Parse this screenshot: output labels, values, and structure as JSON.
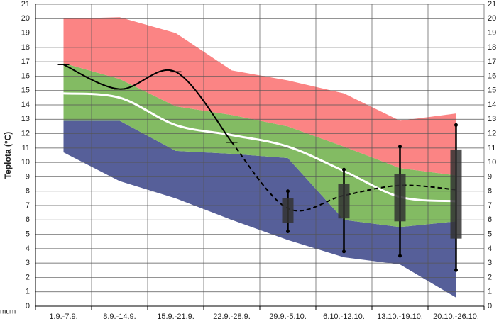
{
  "chart_data": {
    "type": "band_line_box",
    "y_label": "Teplota (°C)",
    "corner_text": "mum",
    "categories": [
      "1.9.-7.9.",
      "8.9.-14.9.",
      "15.9.-21.9.",
      "22.9.-28.9.",
      "29.9.-5.10.",
      "6.10.-12.10.",
      "13.10.-19.10.",
      "20.10.-26.10."
    ],
    "levels": [
      [
        10.7,
        8.7,
        7.5,
        6.0,
        4.6,
        3.4,
        2.9,
        0.6
      ],
      [
        12.9,
        12.9,
        10.8,
        10.6,
        10.3,
        6.0,
        5.5,
        5.9
      ],
      [
        16.9,
        15.8,
        13.9,
        13.3,
        12.5,
        11.1,
        9.6,
        9.1
      ],
      [
        20.0,
        20.1,
        19.0,
        16.4,
        15.7,
        14.8,
        12.9,
        13.4
      ]
    ],
    "band_colors": [
      "#565f99",
      "#83bb63",
      "#fb8484"
    ],
    "series": [
      {
        "color": "#ffffff",
        "style": "solid",
        "values": [
          14.8,
          14.5,
          12.6,
          11.9,
          11.1,
          9.4,
          7.6,
          7.3
        ]
      },
      {
        "color": "#000000",
        "style": "solid",
        "values": [
          16.8,
          15.1,
          16.3,
          11.4,
          null,
          null,
          null,
          null
        ]
      },
      {
        "color": "#000000",
        "style": "dashed",
        "values": [
          null,
          null,
          null,
          11.4,
          6.8,
          7.7,
          8.4,
          8.1
        ]
      }
    ],
    "boxes": {
      "color": "#333333",
      "low": [
        null,
        null,
        null,
        null,
        5.8,
        6.1,
        5.9,
        4.7
      ],
      "high": [
        null,
        null,
        null,
        null,
        7.5,
        8.5,
        9.2,
        10.9
      ],
      "whisker_low": [
        null,
        null,
        null,
        null,
        5.2,
        3.8,
        3.5,
        2.5
      ],
      "whisker_high": [
        null,
        null,
        null,
        null,
        8.0,
        9.5,
        11.1,
        12.6
      ]
    },
    "ylim": [
      0,
      21
    ],
    "yticks": [
      0,
      1,
      2,
      3,
      4,
      5,
      6,
      7,
      8,
      9,
      10,
      11,
      12,
      13,
      14,
      15,
      16,
      17,
      18,
      19,
      20,
      21
    ],
    "grid": true
  }
}
